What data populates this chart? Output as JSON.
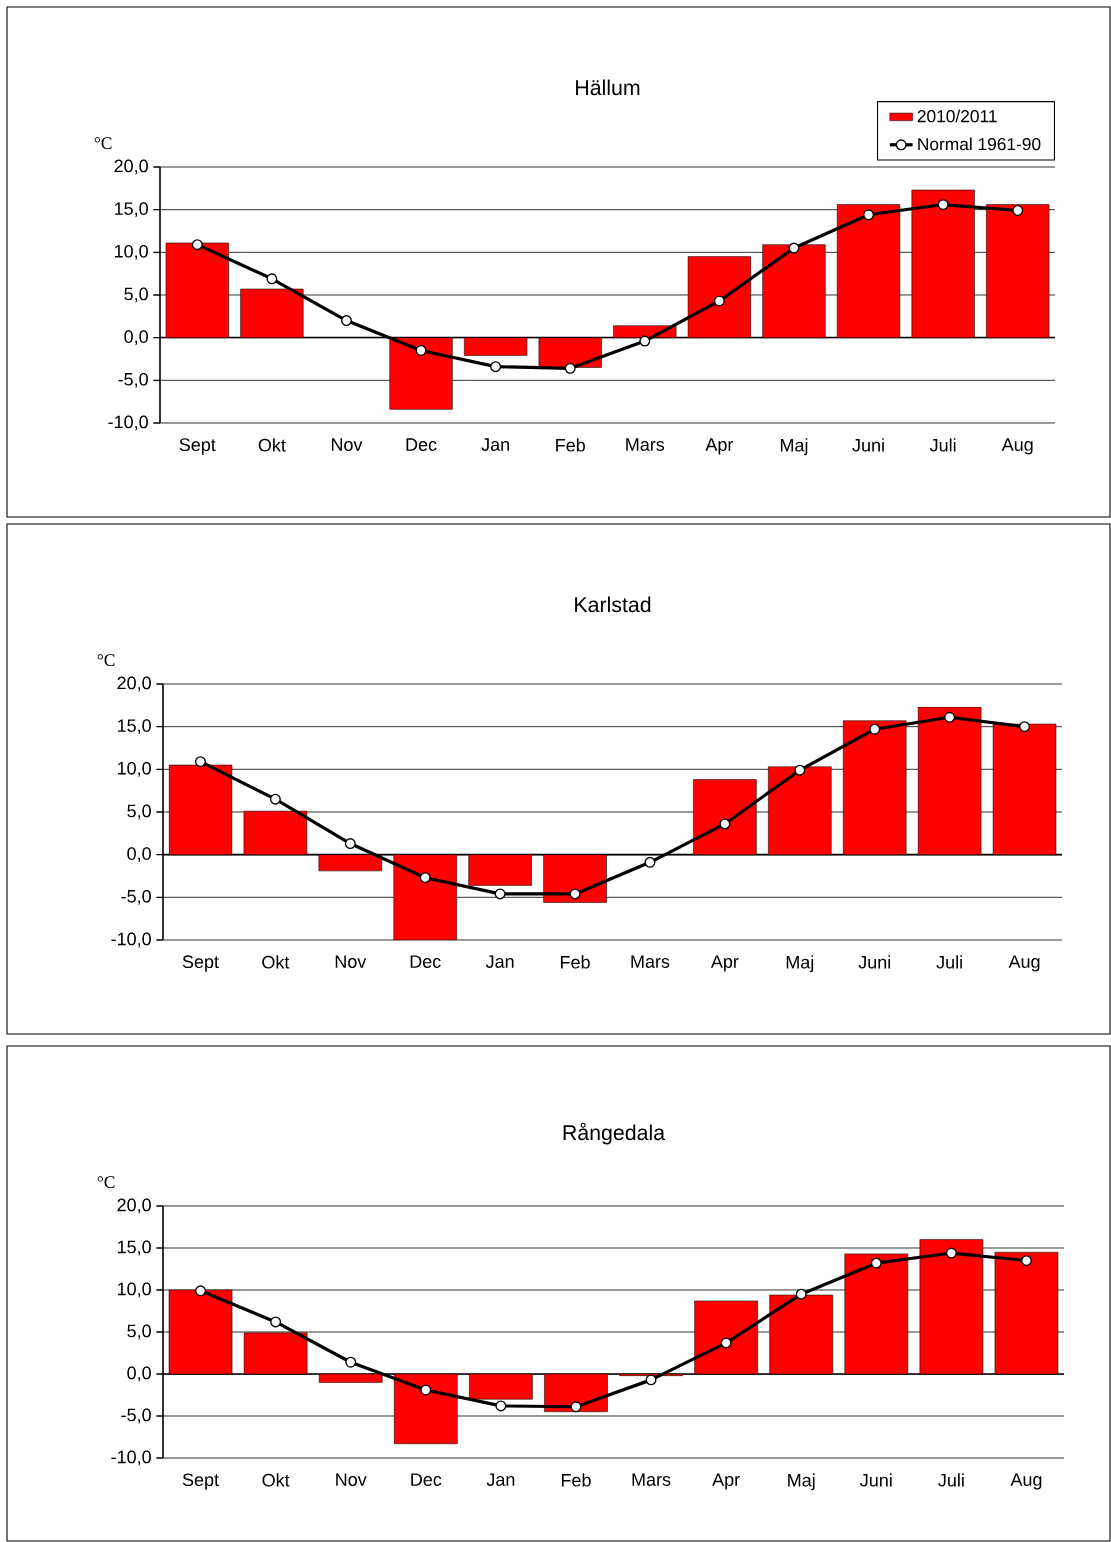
{
  "chart_data": [
    {
      "type": "bar",
      "title": "Hällum",
      "ylabel": "°C",
      "categories": [
        "Sept",
        "Okt",
        "Nov",
        "Dec",
        "Jan",
        "Feb",
        "Mars",
        "Apr",
        "Maj",
        "Juni",
        "Juli",
        "Aug"
      ],
      "series": [
        {
          "name": "2010/2011",
          "color": "#ff0000",
          "values": [
            11.1,
            5.7,
            null,
            -8.4,
            -2.1,
            -3.5,
            1.4,
            9.5,
            10.9,
            15.6,
            17.3,
            15.6
          ]
        },
        {
          "name": "Normal 1961-90",
          "type": "line",
          "color": "#000000",
          "marker": "circle",
          "line_style": "solid",
          "values": [
            10.9,
            6.9,
            2.0,
            -1.5,
            -3.4,
            -3.6,
            -0.4,
            4.3,
            10.5,
            14.4,
            15.6,
            14.9
          ]
        }
      ],
      "ylim": [
        -10,
        20
      ],
      "yticks": [
        {
          "value": -10,
          "label": "-10,0"
        },
        {
          "value": -5,
          "label": "-5,0"
        },
        {
          "value": 0,
          "label": "0,0"
        },
        {
          "value": 5,
          "label": "5,0"
        },
        {
          "value": 10,
          "label": "10,0"
        },
        {
          "value": 15,
          "label": "15,0"
        },
        {
          "value": 20,
          "label": "20,0"
        }
      ],
      "grid": "y",
      "legend": "top right"
    },
    {
      "type": "bar",
      "title": "Karlstad",
      "ylabel": "°C",
      "categories": [
        "Sept",
        "Okt",
        "Nov",
        "Dec",
        "Jan",
        "Feb",
        "Mars",
        "Apr",
        "Maj",
        "Juni",
        "Juli",
        "Aug"
      ],
      "series": [
        {
          "color": "#ff0000",
          "values": [
            10.5,
            5.1,
            -1.9,
            -10.0,
            -3.6,
            -5.6,
            null,
            8.8,
            10.3,
            15.7,
            17.3,
            15.3
          ]
        },
        {
          "type": "line",
          "color": "#000000",
          "marker": "circle",
          "line_style": "solid",
          "values": [
            10.9,
            6.5,
            1.3,
            -2.7,
            -4.6,
            -4.6,
            -0.9,
            3.6,
            9.9,
            14.7,
            16.1,
            15.0
          ]
        }
      ],
      "ylim": [
        -10,
        20
      ],
      "yticks": [
        {
          "value": -10,
          "label": "-10,0"
        },
        {
          "value": -5,
          "label": "-5,0"
        },
        {
          "value": 0,
          "label": "0,0"
        },
        {
          "value": 5,
          "label": "5,0"
        },
        {
          "value": 10,
          "label": "10,0"
        },
        {
          "value": 15,
          "label": "15,0"
        },
        {
          "value": 20,
          "label": "20,0"
        }
      ],
      "grid": "y"
    },
    {
      "type": "bar",
      "title": "Rångedala",
      "ylabel": "°C",
      "categories": [
        "Sept",
        "Okt",
        "Nov",
        "Dec",
        "Jan",
        "Feb",
        "Mars",
        "Apr",
        "Maj",
        "Juni",
        "Juli",
        "Aug"
      ],
      "series": [
        {
          "color": "#ff0000",
          "values": [
            10.0,
            4.9,
            -1.0,
            -8.3,
            -3.0,
            -4.5,
            -0.2,
            8.7,
            9.4,
            14.3,
            16.0,
            14.5
          ]
        },
        {
          "type": "line",
          "color": "#000000",
          "marker": "circle",
          "line_style": "solid",
          "values": [
            9.9,
            6.2,
            1.4,
            -1.9,
            -3.8,
            -3.9,
            -0.7,
            3.7,
            9.5,
            13.2,
            14.4,
            13.5
          ]
        }
      ],
      "ylim": [
        -10,
        20
      ],
      "yticks": [
        {
          "value": -10,
          "label": "-10,0"
        },
        {
          "value": -5,
          "label": "-5,0"
        },
        {
          "value": 0,
          "label": "0,0"
        },
        {
          "value": 5,
          "label": "5,0"
        },
        {
          "value": 10,
          "label": "10,0"
        },
        {
          "value": 15,
          "label": "15,0"
        },
        {
          "value": 20,
          "label": "20,0"
        }
      ],
      "grid": "y"
    }
  ]
}
